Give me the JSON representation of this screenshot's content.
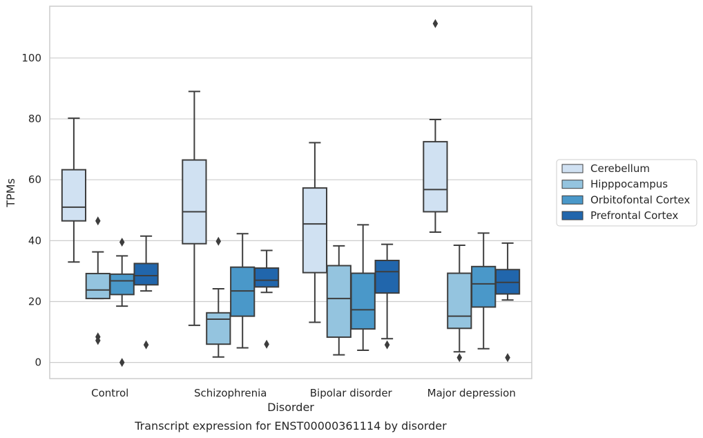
{
  "chart_data": {
    "type": "box",
    "xlabel": "Disorder",
    "ylabel": "TPMs",
    "caption": "Transcript expression for ENST00000361114 by disorder",
    "ylim": [
      -5.3,
      117
    ],
    "yticks": [
      0,
      20,
      40,
      60,
      80,
      100
    ],
    "grid": "horizontal",
    "legend_position": "right",
    "categories": [
      "Control",
      "Schizophrenia",
      "Bipolar disorder",
      "Major depression"
    ],
    "series": [
      {
        "name": "Cerebellum",
        "color": "#d0e1f2",
        "boxes": [
          {
            "whisker_low": 33,
            "q1": 46.5,
            "median": 51,
            "q3": 63.3,
            "whisker_high": 80.2,
            "outliers": []
          },
          {
            "whisker_low": 12.2,
            "q1": 39,
            "median": 49.5,
            "q3": 66.5,
            "whisker_high": 89,
            "outliers": []
          },
          {
            "whisker_low": 13.2,
            "q1": 29.5,
            "median": 45.5,
            "q3": 57.3,
            "whisker_high": 72.2,
            "outliers": []
          },
          {
            "whisker_low": 42.8,
            "q1": 49.5,
            "median": 56.8,
            "q3": 72.5,
            "whisker_high": 79.8,
            "outliers": [
              111.3
            ]
          }
        ]
      },
      {
        "name": "Hipppocampus",
        "color": "#94c4df",
        "boxes": [
          {
            "whisker_low": 21,
            "q1": 21,
            "median": 23.8,
            "q3": 29.2,
            "whisker_high": 36.3,
            "outliers": [
              46.5,
              8.4,
              7.2
            ]
          },
          {
            "whisker_low": 1.8,
            "q1": 6,
            "median": 14.2,
            "q3": 16.3,
            "whisker_high": 24.2,
            "outliers": [
              39.8
            ]
          },
          {
            "whisker_low": 2.5,
            "q1": 8.3,
            "median": 21,
            "q3": 31.8,
            "whisker_high": 38.3,
            "outliers": []
          },
          {
            "whisker_low": 3.5,
            "q1": 11.2,
            "median": 15.2,
            "q3": 29.3,
            "whisker_high": 38.5,
            "outliers": [
              1.6
            ]
          }
        ]
      },
      {
        "name": "Orbitofontal Cortex",
        "color": "#4a98c9",
        "boxes": [
          {
            "whisker_low": 18.5,
            "q1": 22.3,
            "median": 26.8,
            "q3": 29,
            "whisker_high": 35,
            "outliers": [
              39.5,
              0
            ]
          },
          {
            "whisker_low": 4.8,
            "q1": 15.2,
            "median": 23.5,
            "q3": 31.3,
            "whisker_high": 42.3,
            "outliers": []
          },
          {
            "whisker_low": 4,
            "q1": 11,
            "median": 17.3,
            "q3": 29.3,
            "whisker_high": 45.2,
            "outliers": []
          },
          {
            "whisker_low": 4.5,
            "q1": 18.2,
            "median": 25.8,
            "q3": 31.5,
            "whisker_high": 42.5,
            "outliers": []
          }
        ]
      },
      {
        "name": "Prefrontal Cortex",
        "color": "#2166ac",
        "boxes": [
          {
            "whisker_low": 23.5,
            "q1": 25.5,
            "median": 28.5,
            "q3": 32.5,
            "whisker_high": 41.5,
            "outliers": [
              5.8
            ]
          },
          {
            "whisker_low": 23,
            "q1": 24.8,
            "median": 27,
            "q3": 31,
            "whisker_high": 36.8,
            "outliers": [
              6
            ]
          },
          {
            "whisker_low": 7.8,
            "q1": 22.8,
            "median": 29.8,
            "q3": 33.5,
            "whisker_high": 38.8,
            "outliers": [
              5.8
            ]
          },
          {
            "whisker_low": 20.5,
            "q1": 22.5,
            "median": 26.3,
            "q3": 30.5,
            "whisker_high": 39.2,
            "outliers": [
              1.6
            ]
          }
        ]
      }
    ]
  }
}
